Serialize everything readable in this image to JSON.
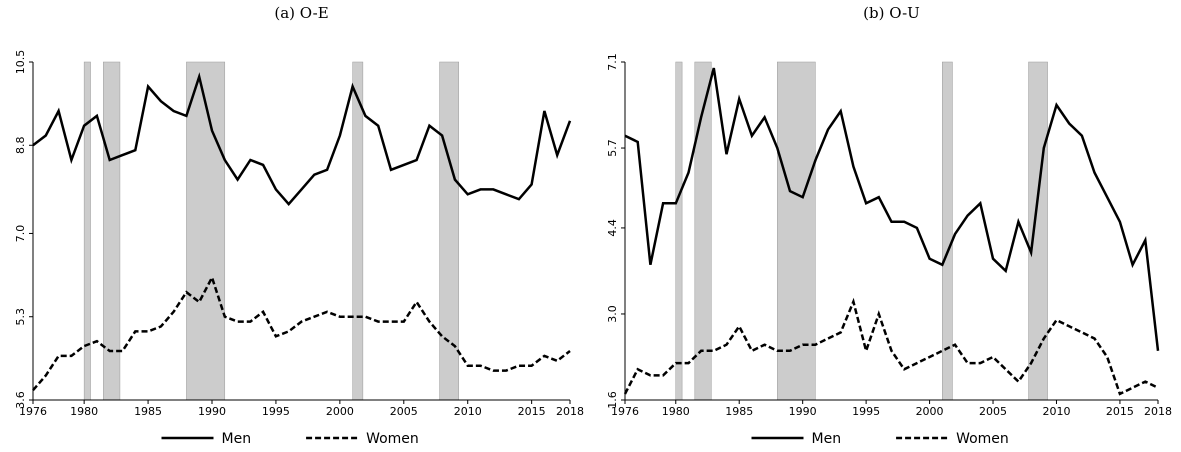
{
  "chart_data": [
    {
      "type": "line",
      "title": "(a) O-E",
      "x": [
        1976,
        1977,
        1978,
        1979,
        1980,
        1981,
        1982,
        1983,
        1984,
        1985,
        1986,
        1987,
        1988,
        1989,
        1990,
        1991,
        1992,
        1993,
        1994,
        1995,
        1996,
        1997,
        1998,
        1999,
        2000,
        2001,
        2002,
        2003,
        2004,
        2005,
        2006,
        2007,
        2008,
        2009,
        2010,
        2011,
        2012,
        2013,
        2014,
        2015,
        2016,
        2017,
        2018
      ],
      "series": [
        {
          "name": "Men",
          "color": "#000000",
          "line_style": "solid",
          "values": [
            8.8,
            9.0,
            9.5,
            8.5,
            9.2,
            9.4,
            8.5,
            8.6,
            8.7,
            10.0,
            9.7,
            9.5,
            9.4,
            10.2,
            9.1,
            8.5,
            8.1,
            8.5,
            8.4,
            7.9,
            7.6,
            7.9,
            8.2,
            8.3,
            9.0,
            10.0,
            9.4,
            9.2,
            8.3,
            8.4,
            8.5,
            9.2,
            9.0,
            8.1,
            7.8,
            7.9,
            7.9,
            7.8,
            7.7,
            8.0,
            9.5,
            8.6,
            9.3
          ]
        },
        {
          "name": "Women",
          "color": "#000000",
          "line_style": "dashed",
          "values": [
            3.8,
            4.1,
            4.5,
            4.5,
            4.7,
            4.8,
            4.6,
            4.6,
            5.0,
            5.0,
            5.1,
            5.4,
            5.8,
            5.6,
            6.1,
            5.3,
            5.2,
            5.2,
            5.4,
            4.9,
            5.0,
            5.2,
            5.3,
            5.4,
            5.3,
            5.3,
            5.3,
            5.2,
            5.2,
            5.2,
            5.6,
            5.2,
            4.9,
            4.7,
            4.3,
            4.3,
            4.2,
            4.2,
            4.3,
            4.3,
            4.5,
            4.4,
            4.6
          ]
        }
      ],
      "shaded_regions": [
        [
          1980,
          1980.5
        ],
        [
          1981.5,
          1982.8
        ],
        [
          1988,
          1991
        ],
        [
          2001,
          2001.8
        ],
        [
          2007.8,
          2009.3
        ]
      ],
      "shade_color": "#cccccc",
      "xlim": [
        1976,
        2018
      ],
      "xticks": [
        1976,
        1980,
        1985,
        1990,
        1995,
        2000,
        2005,
        2010,
        2015,
        2018
      ],
      "ylim": [
        3.6,
        10.5
      ],
      "yticks": [
        3.6,
        5.3,
        {
          "value": 7,
          "label": "7.0"
        },
        8.8,
        10.5
      ]
    },
    {
      "type": "line",
      "title": "(b) O-U",
      "x": [
        1976,
        1977,
        1978,
        1979,
        1980,
        1981,
        1982,
        1983,
        1984,
        1985,
        1986,
        1987,
        1988,
        1989,
        1990,
        1991,
        1992,
        1993,
        1994,
        1995,
        1996,
        1997,
        1998,
        1999,
        2000,
        2001,
        2002,
        2003,
        2004,
        2005,
        2006,
        2007,
        2008,
        2009,
        2010,
        2011,
        2012,
        2013,
        2014,
        2015,
        2016,
        2017,
        2018
      ],
      "series": [
        {
          "name": "Men",
          "color": "#000000",
          "line_style": "solid",
          "values": [
            5.9,
            5.8,
            3.8,
            4.8,
            4.8,
            5.3,
            6.2,
            7.0,
            5.6,
            6.5,
            5.9,
            6.2,
            5.7,
            5.0,
            4.9,
            5.5,
            6.0,
            6.3,
            5.4,
            4.8,
            4.9,
            4.5,
            4.5,
            4.4,
            3.9,
            3.8,
            4.3,
            4.6,
            4.8,
            3.9,
            3.7,
            4.5,
            4.0,
            5.7,
            6.4,
            6.1,
            5.9,
            5.3,
            4.9,
            4.5,
            3.8,
            4.2,
            2.4
          ]
        },
        {
          "name": "Women",
          "color": "#000000",
          "line_style": "dashed",
          "values": [
            1.7,
            2.1,
            2.0,
            2.0,
            2.2,
            2.2,
            2.4,
            2.4,
            2.5,
            2.8,
            2.4,
            2.5,
            2.4,
            2.4,
            2.5,
            2.5,
            2.6,
            2.7,
            3.2,
            2.4,
            3.0,
            2.4,
            2.1,
            2.2,
            2.3,
            2.4,
            2.5,
            2.2,
            2.2,
            2.3,
            2.1,
            1.9,
            2.2,
            2.6,
            2.9,
            2.8,
            2.7,
            2.6,
            2.3,
            1.7,
            1.8,
            1.9,
            1.8
          ]
        }
      ],
      "shaded_regions": [
        [
          1980,
          1980.5
        ],
        [
          1981.5,
          1982.8
        ],
        [
          1988,
          1991
        ],
        [
          2001,
          2001.8
        ],
        [
          2007.8,
          2009.3
        ]
      ],
      "shade_color": "#cccccc",
      "xlim": [
        1976,
        2018
      ],
      "xticks": [
        1976,
        1980,
        1985,
        1990,
        1995,
        2000,
        2005,
        2010,
        2015,
        2018
      ],
      "ylim": [
        1.6,
        7.1
      ],
      "yticks": [
        1.6,
        {
          "value": 3,
          "label": "3.0"
        },
        4.4,
        5.7,
        7.1
      ]
    }
  ]
}
